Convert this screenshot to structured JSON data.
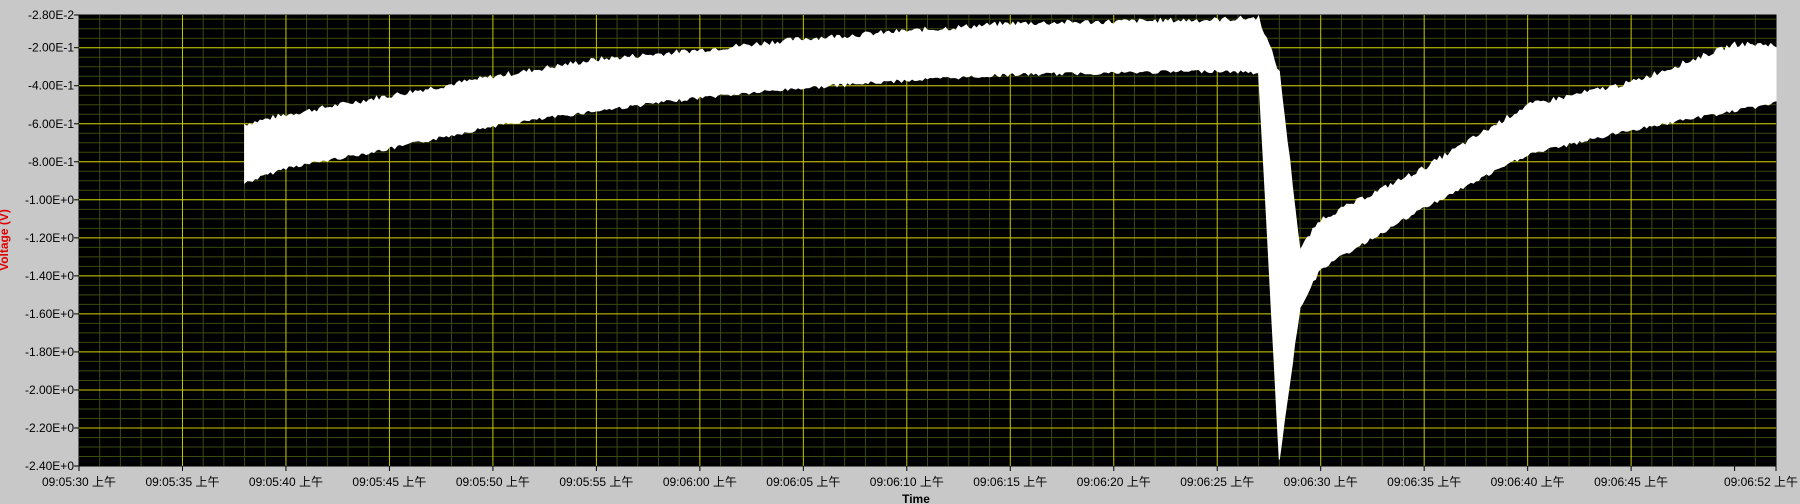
{
  "chart_data": {
    "type": "line",
    "title": "",
    "xlabel": "Time",
    "ylabel": "Voltage (V)",
    "ylabel_color": "#e00000",
    "plot_background": "#000000",
    "major_grid_color": "#c8c800",
    "minor_grid_color": "#3a4a10",
    "trace_color": "#ffffff",
    "grid": true,
    "x_range_seconds_after_09:05:30": [
      0,
      82
    ],
    "y_range": [
      -2.4,
      -0.028
    ],
    "y_ticks": [
      -0.028,
      -0.2,
      -0.4,
      -0.6,
      -0.8,
      -1.0,
      -1.2,
      -1.4,
      -1.6,
      -1.8,
      -2.0,
      -2.2,
      -2.4
    ],
    "y_tick_labels": [
      "-2.80E-2",
      "-2.00E-1",
      "-4.00E-1",
      "-6.00E-1",
      "-8.00E-1",
      "-1.00E+0",
      "-1.20E+0",
      "-1.40E+0",
      "-1.60E+0",
      "-1.80E+0",
      "-2.00E+0",
      "-2.20E+0",
      "-2.40E+0"
    ],
    "x_tick_labels": [
      "09:05:30 上午",
      "09:05:35 上午",
      "09:05:40 上午",
      "09:05:45 上午",
      "09:05:50 上午",
      "09:05:55 上午",
      "09:06:00 上午",
      "09:06:05 上午",
      "09:06:10 上午",
      "09:06:15 上午",
      "09:06:20 上午",
      "09:06:25 上午",
      "09:06:30 上午",
      "09:06:35 上午",
      "09:06:40 上午",
      "09:06:45 上午",
      "09:06:52 上午"
    ],
    "series": [
      {
        "band": [
          {
            "t": "09:05:38",
            "upper": -0.62,
            "lower": -0.9
          },
          {
            "t": "09:05:40",
            "upper": -0.57,
            "lower": -0.82
          },
          {
            "t": "09:05:45",
            "upper": -0.47,
            "lower": -0.72
          },
          {
            "t": "09:05:50",
            "upper": -0.37,
            "lower": -0.6
          },
          {
            "t": "09:05:55",
            "upper": -0.28,
            "lower": -0.52
          },
          {
            "t": "09:06:00",
            "upper": -0.23,
            "lower": -0.45
          },
          {
            "t": "09:06:05",
            "upper": -0.17,
            "lower": -0.4
          },
          {
            "t": "09:06:10",
            "upper": -0.13,
            "lower": -0.36
          },
          {
            "t": "09:06:15",
            "upper": -0.09,
            "lower": -0.33
          },
          {
            "t": "09:06:20",
            "upper": -0.08,
            "lower": -0.32
          },
          {
            "t": "09:06:25",
            "upper": -0.07,
            "lower": -0.31
          },
          {
            "t": "09:06:27",
            "upper": -0.06,
            "lower": -0.32
          },
          {
            "t": "09:06:28",
            "upper": -0.35,
            "lower": -2.35
          },
          {
            "t": "09:06:29",
            "upper": -1.28,
            "lower": -1.55
          },
          {
            "t": "09:06:30",
            "upper": -1.12,
            "lower": -1.35
          },
          {
            "t": "09:06:35",
            "upper": -0.85,
            "lower": -1.03
          },
          {
            "t": "09:06:40",
            "upper": -0.52,
            "lower": -0.75
          },
          {
            "t": "09:06:45",
            "upper": -0.4,
            "lower": -0.62
          },
          {
            "t": "09:06:50",
            "upper": -0.2,
            "lower": -0.52
          },
          {
            "t": "09:06:52",
            "upper": -0.2,
            "lower": -0.48
          }
        ]
      }
    ]
  }
}
